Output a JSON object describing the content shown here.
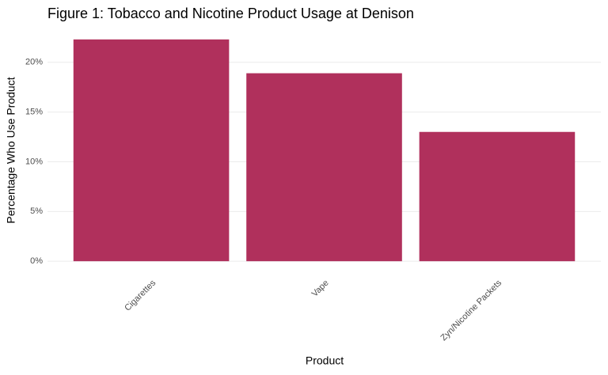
{
  "chart_data": {
    "type": "bar",
    "title": "Figure 1: Tobacco and Nicotine Product Usage at Denison",
    "x_label": "Product",
    "y_label": "Percentage Who Use Product",
    "categories": [
      "Cigarettes",
      "Vape",
      "Zyn/Nicotine Packets"
    ],
    "values": [
      22.3,
      18.9,
      13.0
    ],
    "color": "#b0305c",
    "ylim": [
      -1.1,
      23.4
    ],
    "yticks": [
      {
        "value": 0,
        "label": "0%"
      },
      {
        "value": 5,
        "label": "5%"
      },
      {
        "value": 10,
        "label": "10%"
      },
      {
        "value": 15,
        "label": "15%"
      },
      {
        "value": 20,
        "label": "20%"
      }
    ],
    "grid": true
  }
}
